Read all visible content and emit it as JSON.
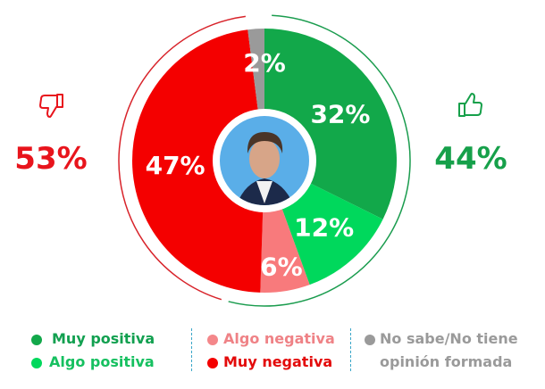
{
  "chart_data": {
    "type": "pie",
    "donut": true,
    "start": "top-clockwise",
    "slices": [
      {
        "label": "Muy positiva",
        "value": 32,
        "display": "32%",
        "color": "#12a84a"
      },
      {
        "label": "Algo positiva",
        "value": 12,
        "display": "12%",
        "color": "#00d85c"
      },
      {
        "label": "Algo negativa",
        "value": 6,
        "display": "6%",
        "color": "#f87a7c"
      },
      {
        "label": "Muy negativa",
        "value": 47,
        "display": "47%",
        "color": "#f40000"
      },
      {
        "label": "No sabe/No tiene opinión formada",
        "value": 2,
        "display": "2%",
        "color": "#9a9a9a"
      }
    ],
    "totals": {
      "negative": {
        "display": "53%",
        "color": "#e8141c",
        "icon": "thumbs-down-icon"
      },
      "positive": {
        "display": "44%",
        "color": "#16a04a",
        "icon": "thumbs-up-icon"
      }
    },
    "legend": {
      "placement": "bottom",
      "items": [
        {
          "label": "Muy positiva",
          "color": "#12a84a",
          "text_color": "#12a050"
        },
        {
          "label": "Algo positiva",
          "color": "#00d85c",
          "text_color": "#16c060"
        },
        {
          "label": "Algo negativa",
          "color": "#f4878a",
          "text_color": "#ef8286"
        },
        {
          "label": "Muy negativa",
          "color": "#f40000",
          "text_color": "#e30a0a"
        },
        {
          "label_line1": "No sabe/No tiene",
          "label_line2": "opinión formada",
          "color": "#9a9a9a",
          "text_color": "#9a9a9a"
        }
      ]
    }
  }
}
